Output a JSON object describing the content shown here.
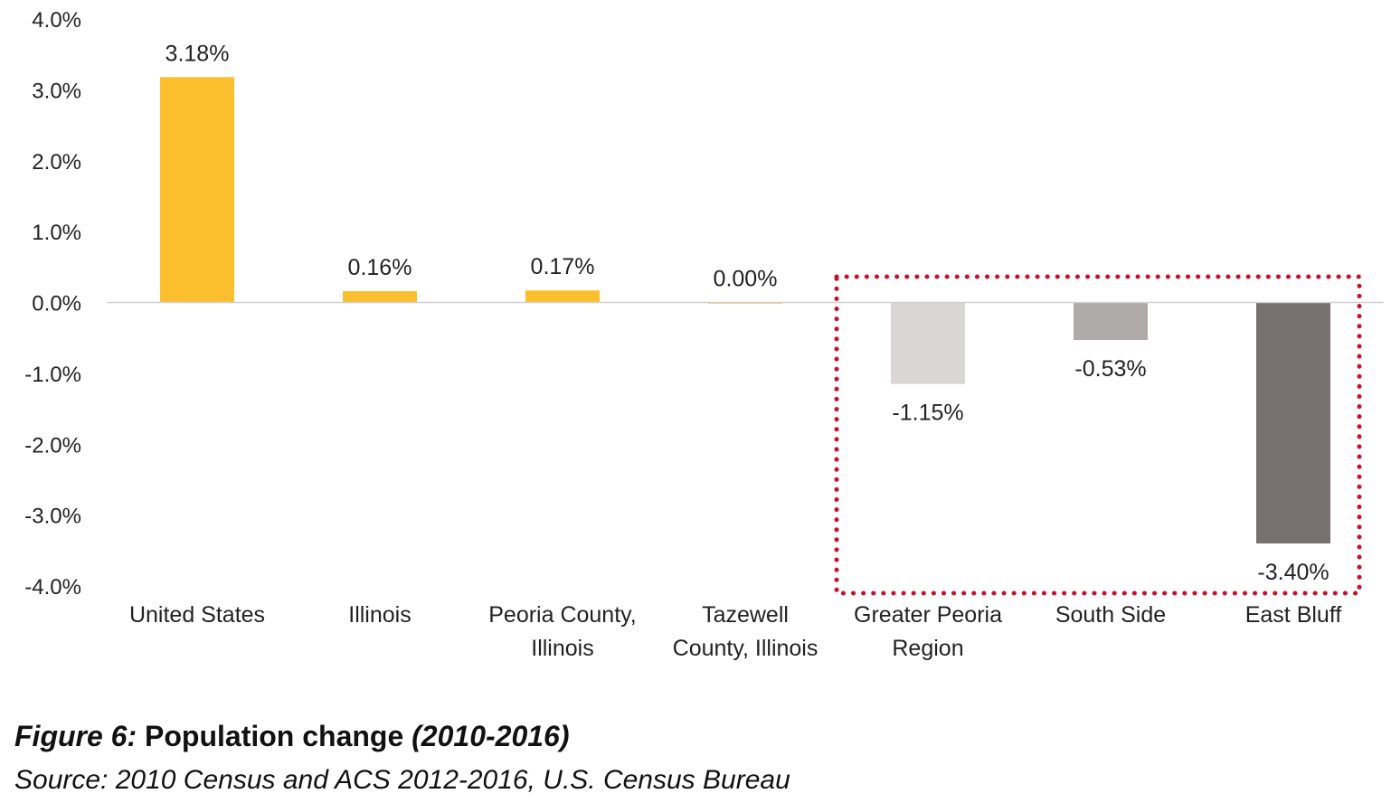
{
  "chart_data": {
    "type": "bar",
    "categories": [
      [
        "United States"
      ],
      [
        "Illinois"
      ],
      [
        "Peoria County,",
        "Illinois"
      ],
      [
        "Tazewell",
        "County, Illinois"
      ],
      [
        "Greater Peoria",
        "Region"
      ],
      [
        "South Side"
      ],
      [
        "East Bluff"
      ]
    ],
    "values": [
      3.18,
      0.16,
      0.17,
      0.0,
      -1.15,
      -0.53,
      -3.4
    ],
    "data_labels": [
      "3.18%",
      "0.16%",
      "0.17%",
      "0.00%",
      "-1.15%",
      "-0.53%",
      "-3.40%"
    ],
    "bar_colors": [
      "#fbbf2d",
      "#fbbf2d",
      "#fbbf2d",
      "#fbbf2d",
      "#d9d7d6",
      "#aeaaaa",
      "#76716f"
    ],
    "ylim": [
      -4.0,
      4.0
    ],
    "yticks": [
      4.0,
      3.0,
      2.0,
      1.0,
      0.0,
      -1.0,
      -2.0,
      -3.0,
      -4.0
    ],
    "ytick_labels": [
      "4.0%",
      "3.0%",
      "2.0%",
      "1.0%",
      "0.0%",
      "-1.0%",
      "-2.0%",
      "-3.0%",
      "-4.0%"
    ],
    "grid": false,
    "highlight": {
      "categories": [
        "Greater Peoria Region",
        "South Side",
        "East Bluff"
      ],
      "style": "dotted",
      "color": "#c8102e"
    }
  },
  "caption": {
    "figure_label": "Figure 6:",
    "title": " Population change ",
    "period": "(2010-2016)",
    "source": "Source: 2010 Census and ACS 2012-2016, U.S. Census Bureau"
  }
}
